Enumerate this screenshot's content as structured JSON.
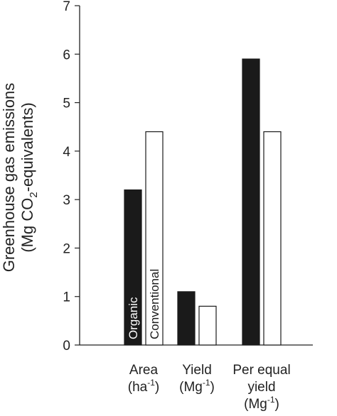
{
  "chart_data": {
    "type": "bar",
    "ylabel_line1": "Greenhouse gas emissions",
    "ylabel_line2": {
      "pre": "(Mg CO",
      "sub": "2",
      "post": "-equivalents)"
    },
    "ylim": [
      0,
      7
    ],
    "yticks": [
      "0",
      "1",
      "2",
      "3",
      "4",
      "5",
      "6",
      "7"
    ],
    "categories": [
      {
        "lines": [
          {
            "text": "Area"
          },
          {
            "text": "(ha",
            "sup": "-1",
            "post": ")"
          }
        ]
      },
      {
        "lines": [
          {
            "text": "Yield"
          },
          {
            "text": "(Mg",
            "sup": "-1",
            "post": ")"
          }
        ]
      },
      {
        "lines": [
          {
            "text": "Per equal"
          },
          {
            "text": "yield"
          },
          {
            "text": "(Mg",
            "sup": "-1",
            "post": ")"
          }
        ]
      }
    ],
    "series": [
      {
        "name": "Organic",
        "color": "#1a1a1a",
        "values": [
          3.2,
          1.1,
          5.9
        ]
      },
      {
        "name": "Conventional",
        "color": "#ffffff",
        "values": [
          4.4,
          0.8,
          4.4
        ]
      }
    ],
    "grid": false,
    "legend": "series names written vertically inside first bar pair"
  }
}
